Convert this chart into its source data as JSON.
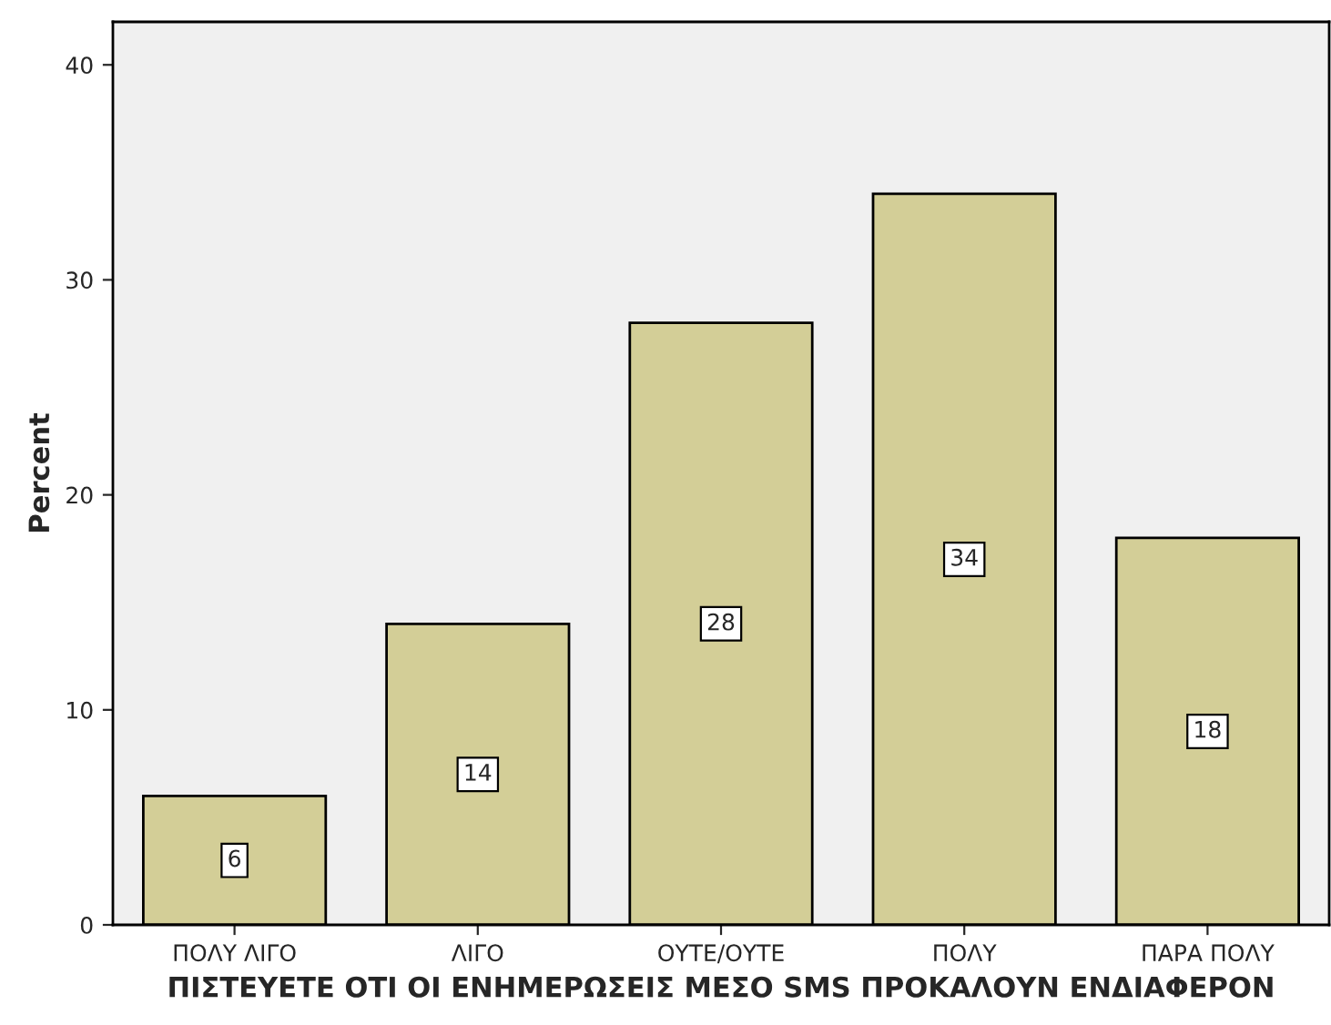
{
  "chart_data": {
    "type": "bar",
    "xlabel": "ΠΙΣΤΕΥΕΤΕ ΟΤΙ ΟΙ ΕΝΗΜΕΡΩΣΕΙΣ ΜΕΣΟ SMS ΠΡΟΚΑΛΟΥΝ ΕΝΔΙΑΦΕΡΟΝ",
    "ylabel": "Percent",
    "categories": [
      "ΠΟΛΥ ΛΙΓΟ",
      "ΛΙΓΟ",
      "ΟΥΤΕ/ΟΥΤΕ",
      "ΠΟΛΥ",
      "ΠΑΡΑ ΠΟΛΥ"
    ],
    "values": [
      6,
      14,
      28,
      34,
      18
    ],
    "color": "#d3ce97",
    "ylim": [
      0,
      42
    ],
    "yticks": [
      0,
      10,
      20,
      30,
      40
    ],
    "grid": false,
    "data_labels": true
  }
}
